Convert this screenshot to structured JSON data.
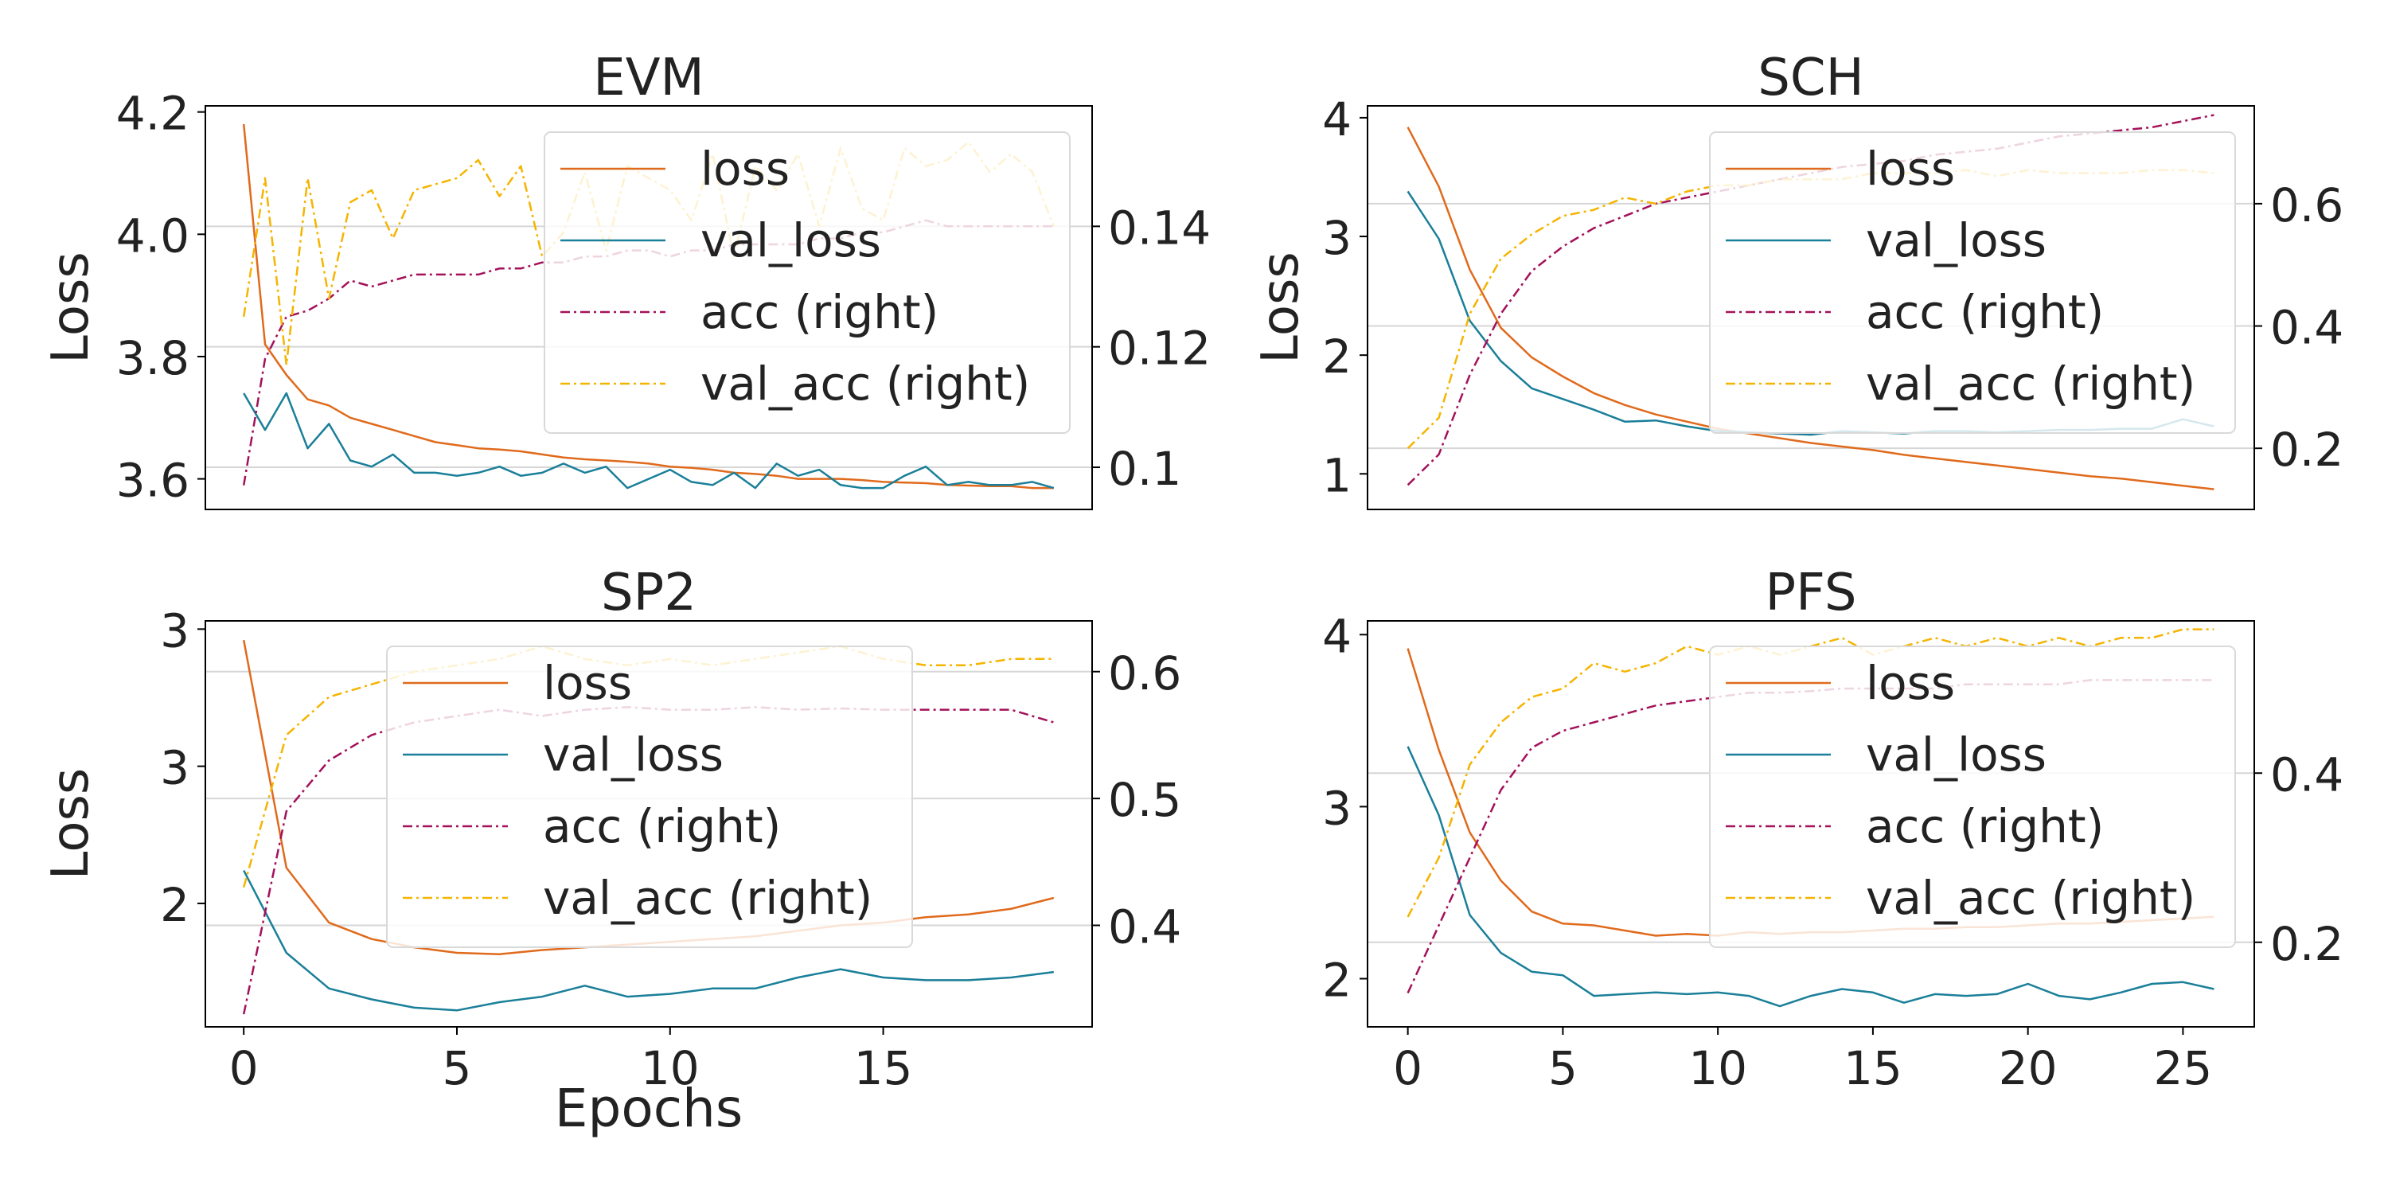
{
  "figure": {
    "x_label": "Epochs",
    "left_axis_label": "Loss"
  },
  "legend_labels": [
    "loss",
    "val_loss",
    "acc (right)",
    "val_acc (right)"
  ],
  "colors": {
    "loss": "#e06a1c",
    "val_loss": "#1a7f99",
    "acc": "#a3115a",
    "val_acc": "#f5b400"
  },
  "chart_data": [
    {
      "type": "line",
      "title": "EVM",
      "ylabel": "Loss",
      "xlabel": "Epochs",
      "xlim": [
        -0.9,
        19.9
      ],
      "xticks": [
        0,
        5,
        10,
        15
      ],
      "ylim": [
        3.55,
        4.21
      ],
      "yticks": [
        3.6,
        3.8,
        4.0,
        4.2
      ],
      "y2lim": [
        0.093,
        0.16
      ],
      "y2ticks": [
        0.1,
        0.12,
        0.14
      ],
      "legend_position": "upper right",
      "x": [
        0,
        0.5,
        1,
        1.5,
        2,
        2.5,
        3,
        3.5,
        4,
        4.5,
        5,
        5.5,
        6,
        6.5,
        7,
        7.5,
        8,
        8.5,
        9,
        9.5,
        10,
        10.5,
        11,
        11.5,
        12,
        12.5,
        13,
        13.5,
        14,
        14.5,
        15,
        15.5,
        16,
        16.5,
        17,
        17.5,
        18,
        18.5,
        19
      ],
      "series": [
        {
          "name": "loss",
          "axis": "left",
          "style": "solid",
          "values": [
            4.18,
            3.82,
            3.77,
            3.73,
            3.72,
            3.7,
            3.69,
            3.68,
            3.67,
            3.66,
            3.655,
            3.65,
            3.648,
            3.645,
            3.64,
            3.635,
            3.632,
            3.63,
            3.628,
            3.625,
            3.62,
            3.618,
            3.615,
            3.61,
            3.608,
            3.605,
            3.6,
            3.6,
            3.6,
            3.598,
            3.595,
            3.594,
            3.593,
            3.59,
            3.589,
            3.588,
            3.588,
            3.585,
            3.585
          ]
        },
        {
          "name": "val_loss",
          "axis": "left",
          "style": "solid",
          "values": [
            3.74,
            3.68,
            3.74,
            3.65,
            3.69,
            3.63,
            3.62,
            3.64,
            3.61,
            3.61,
            3.605,
            3.61,
            3.62,
            3.605,
            3.61,
            3.625,
            3.61,
            3.62,
            3.585,
            3.6,
            3.615,
            3.595,
            3.59,
            3.61,
            3.585,
            3.625,
            3.605,
            3.615,
            3.59,
            3.585,
            3.585,
            3.605,
            3.62,
            3.59,
            3.595,
            3.59,
            3.59,
            3.595,
            3.585
          ]
        },
        {
          "name": "acc (right)",
          "axis": "right",
          "style": "dashdot",
          "values": [
            0.097,
            0.118,
            0.125,
            0.126,
            0.128,
            0.131,
            0.13,
            0.131,
            0.132,
            0.132,
            0.132,
            0.132,
            0.133,
            0.133,
            0.134,
            0.134,
            0.135,
            0.135,
            0.136,
            0.136,
            0.135,
            0.136,
            0.136,
            0.137,
            0.137,
            0.137,
            0.137,
            0.138,
            0.138,
            0.139,
            0.139,
            0.14,
            0.141,
            0.14,
            0.14,
            0.14,
            0.14,
            0.14,
            0.14
          ]
        },
        {
          "name": "val_acc (right)",
          "axis": "right",
          "style": "dashdot",
          "values": [
            0.125,
            0.148,
            0.117,
            0.148,
            0.128,
            0.144,
            0.146,
            0.138,
            0.146,
            0.147,
            0.148,
            0.151,
            0.145,
            0.15,
            0.135,
            0.139,
            0.149,
            0.136,
            0.15,
            0.148,
            0.146,
            0.141,
            0.152,
            0.135,
            0.15,
            0.146,
            0.152,
            0.14,
            0.153,
            0.143,
            0.141,
            0.153,
            0.15,
            0.151,
            0.154,
            0.149,
            0.152,
            0.149,
            0.14
          ]
        }
      ]
    },
    {
      "type": "line",
      "title": "SCH",
      "ylabel": "Loss",
      "xlabel": "",
      "xlim": [
        -1.3,
        27.3
      ],
      "xticks": [
        0,
        5,
        10,
        15,
        20,
        25
      ],
      "ylim": [
        0.7,
        4.1
      ],
      "yticks": [
        1,
        2,
        3,
        4
      ],
      "y2lim": [
        0.1,
        0.76
      ],
      "y2ticks": [
        0.2,
        0.4,
        0.6
      ],
      "legend_position": "center right",
      "x": [
        0,
        1,
        2,
        3,
        4,
        5,
        6,
        7,
        8,
        9,
        10,
        11,
        12,
        13,
        14,
        15,
        16,
        17,
        18,
        19,
        20,
        21,
        22,
        23,
        24,
        25,
        26
      ],
      "series": [
        {
          "name": "loss",
          "axis": "left",
          "style": "solid",
          "values": [
            3.92,
            3.42,
            2.72,
            2.23,
            1.98,
            1.82,
            1.68,
            1.58,
            1.5,
            1.44,
            1.38,
            1.34,
            1.3,
            1.26,
            1.23,
            1.2,
            1.16,
            1.13,
            1.1,
            1.07,
            1.04,
            1.01,
            0.98,
            0.96,
            0.93,
            0.9,
            0.87
          ]
        },
        {
          "name": "val_loss",
          "axis": "left",
          "style": "solid",
          "values": [
            3.38,
            2.98,
            2.29,
            1.95,
            1.72,
            1.63,
            1.54,
            1.44,
            1.45,
            1.4,
            1.36,
            1.35,
            1.34,
            1.33,
            1.36,
            1.35,
            1.34,
            1.36,
            1.36,
            1.35,
            1.36,
            1.37,
            1.37,
            1.38,
            1.38,
            1.46,
            1.4
          ]
        },
        {
          "name": "acc (right)",
          "axis": "right",
          "style": "dashdot",
          "values": [
            0.14,
            0.19,
            0.32,
            0.42,
            0.49,
            0.53,
            0.56,
            0.58,
            0.6,
            0.61,
            0.62,
            0.63,
            0.64,
            0.65,
            0.66,
            0.665,
            0.67,
            0.68,
            0.685,
            0.69,
            0.7,
            0.71,
            0.715,
            0.72,
            0.725,
            0.735,
            0.745
          ]
        },
        {
          "name": "val_acc (right)",
          "axis": "right",
          "style": "dashdot",
          "values": [
            0.2,
            0.25,
            0.42,
            0.51,
            0.55,
            0.58,
            0.59,
            0.61,
            0.6,
            0.62,
            0.63,
            0.63,
            0.64,
            0.64,
            0.64,
            0.65,
            0.65,
            0.65,
            0.655,
            0.645,
            0.655,
            0.65,
            0.65,
            0.65,
            0.655,
            0.655,
            0.65
          ]
        }
      ]
    },
    {
      "type": "line",
      "title": "SP2",
      "ylabel": "Loss",
      "xlabel": "Epochs",
      "xlim": [
        -0.9,
        19.9
      ],
      "xticks": [
        0,
        5,
        10,
        15
      ],
      "ylim": [
        1.55,
        3.03
      ],
      "yticks": [
        2.0,
        2.5,
        3.0
      ],
      "y2lim": [
        0.32,
        0.64
      ],
      "y2ticks": [
        0.4,
        0.5,
        0.6
      ],
      "legend_position": "center",
      "x": [
        0,
        1,
        2,
        3,
        4,
        5,
        6,
        7,
        8,
        9,
        10,
        11,
        12,
        13,
        14,
        15,
        16,
        17,
        18,
        19
      ],
      "series": [
        {
          "name": "loss",
          "axis": "left",
          "style": "solid",
          "values": [
            2.96,
            2.13,
            1.93,
            1.87,
            1.84,
            1.82,
            1.815,
            1.83,
            1.84,
            1.85,
            1.86,
            1.87,
            1.88,
            1.9,
            1.92,
            1.93,
            1.95,
            1.96,
            1.98,
            2.02
          ]
        },
        {
          "name": "val_loss",
          "axis": "left",
          "style": "solid",
          "values": [
            2.12,
            1.82,
            1.69,
            1.65,
            1.62,
            1.61,
            1.64,
            1.66,
            1.7,
            1.66,
            1.67,
            1.69,
            1.69,
            1.73,
            1.76,
            1.73,
            1.72,
            1.72,
            1.73,
            1.75
          ]
        },
        {
          "name": "acc (right)",
          "axis": "right",
          "style": "dashdot",
          "values": [
            0.33,
            0.49,
            0.53,
            0.55,
            0.56,
            0.565,
            0.57,
            0.565,
            0.57,
            0.572,
            0.57,
            0.57,
            0.572,
            0.57,
            0.571,
            0.57,
            0.57,
            0.57,
            0.57,
            0.56
          ]
        },
        {
          "name": "val_acc (right)",
          "axis": "right",
          "style": "dashdot",
          "values": [
            0.43,
            0.55,
            0.58,
            0.59,
            0.6,
            0.605,
            0.61,
            0.62,
            0.61,
            0.605,
            0.61,
            0.605,
            0.61,
            0.615,
            0.62,
            0.61,
            0.605,
            0.605,
            0.61,
            0.61
          ]
        }
      ]
    },
    {
      "type": "line",
      "title": "PFS",
      "ylabel": "",
      "xlabel": "",
      "xlim": [
        -1.3,
        27.3
      ],
      "xticks": [
        0,
        5,
        10,
        15,
        20,
        25
      ],
      "ylim": [
        1.72,
        4.08
      ],
      "yticks": [
        2,
        3,
        4
      ],
      "y2lim": [
        0.1,
        0.58
      ],
      "y2ticks": [
        0.2,
        0.4
      ],
      "legend_position": "center right",
      "x": [
        0,
        1,
        2,
        3,
        4,
        5,
        6,
        7,
        8,
        9,
        10,
        11,
        12,
        13,
        14,
        15,
        16,
        17,
        18,
        19,
        20,
        21,
        22,
        23,
        24,
        25,
        26
      ],
      "series": [
        {
          "name": "loss",
          "axis": "left",
          "style": "solid",
          "values": [
            3.92,
            3.33,
            2.85,
            2.57,
            2.39,
            2.32,
            2.31,
            2.28,
            2.25,
            2.26,
            2.25,
            2.27,
            2.26,
            2.27,
            2.27,
            2.28,
            2.29,
            2.29,
            2.3,
            2.3,
            2.31,
            2.32,
            2.32,
            2.33,
            2.34,
            2.35,
            2.36
          ]
        },
        {
          "name": "val_loss",
          "axis": "left",
          "style": "solid",
          "values": [
            3.35,
            2.95,
            2.37,
            2.15,
            2.04,
            2.02,
            1.9,
            1.91,
            1.92,
            1.91,
            1.92,
            1.9,
            1.84,
            1.9,
            1.94,
            1.92,
            1.86,
            1.91,
            1.9,
            1.91,
            1.97,
            1.9,
            1.88,
            1.92,
            1.97,
            1.98,
            1.94
          ]
        },
        {
          "name": "acc (right)",
          "axis": "right",
          "style": "dashdot",
          "values": [
            0.14,
            0.22,
            0.3,
            0.38,
            0.43,
            0.45,
            0.46,
            0.47,
            0.48,
            0.485,
            0.49,
            0.495,
            0.495,
            0.497,
            0.5,
            0.5,
            0.5,
            0.5,
            0.505,
            0.505,
            0.505,
            0.505,
            0.51,
            0.51,
            0.51,
            0.51,
            0.51
          ]
        },
        {
          "name": "val_acc (right)",
          "axis": "right",
          "style": "dashdot",
          "values": [
            0.23,
            0.3,
            0.41,
            0.46,
            0.49,
            0.5,
            0.53,
            0.52,
            0.53,
            0.55,
            0.54,
            0.55,
            0.54,
            0.55,
            0.56,
            0.54,
            0.55,
            0.56,
            0.55,
            0.56,
            0.55,
            0.56,
            0.55,
            0.56,
            0.56,
            0.57,
            0.57
          ]
        }
      ]
    }
  ]
}
